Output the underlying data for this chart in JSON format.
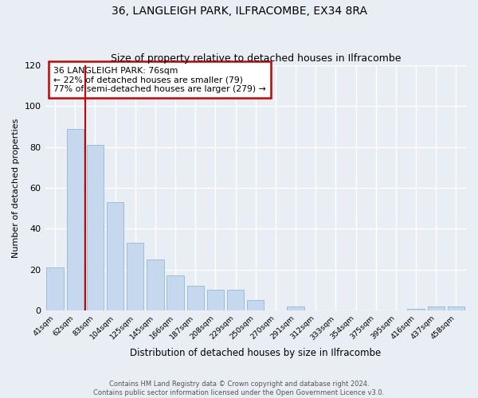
{
  "title": "36, LANGLEIGH PARK, ILFRACOMBE, EX34 8RA",
  "subtitle": "Size of property relative to detached houses in Ilfracombe",
  "xlabel": "Distribution of detached houses by size in Ilfracombe",
  "ylabel": "Number of detached properties",
  "categories": [
    "41sqm",
    "62sqm",
    "83sqm",
    "104sqm",
    "125sqm",
    "145sqm",
    "166sqm",
    "187sqm",
    "208sqm",
    "229sqm",
    "250sqm",
    "270sqm",
    "291sqm",
    "312sqm",
    "333sqm",
    "354sqm",
    "375sqm",
    "395sqm",
    "416sqm",
    "437sqm",
    "458sqm"
  ],
  "values": [
    21,
    89,
    81,
    53,
    33,
    25,
    17,
    12,
    10,
    10,
    5,
    0,
    2,
    0,
    0,
    0,
    0,
    0,
    1,
    2,
    2
  ],
  "bar_color": "#c5d8ed",
  "bar_edgecolor": "#9bbdd6",
  "vline_x_index": 1.5,
  "vline_color": "#cc0000",
  "annotation_title": "36 LANGLEIGH PARK: 76sqm",
  "annotation_line1": "← 22% of detached houses are smaller (79)",
  "annotation_line2": "77% of semi-detached houses are larger (279) →",
  "annotation_box_edgecolor": "#cc0000",
  "ylim": [
    0,
    120
  ],
  "yticks": [
    0,
    20,
    40,
    60,
    80,
    100,
    120
  ],
  "footer_line1": "Contains HM Land Registry data © Crown copyright and database right 2024.",
  "footer_line2": "Contains public sector information licensed under the Open Government Licence v3.0.",
  "bg_color": "#e8eef4",
  "plot_bg_color": "#e8eef4",
  "grid_color": "#ffffff"
}
